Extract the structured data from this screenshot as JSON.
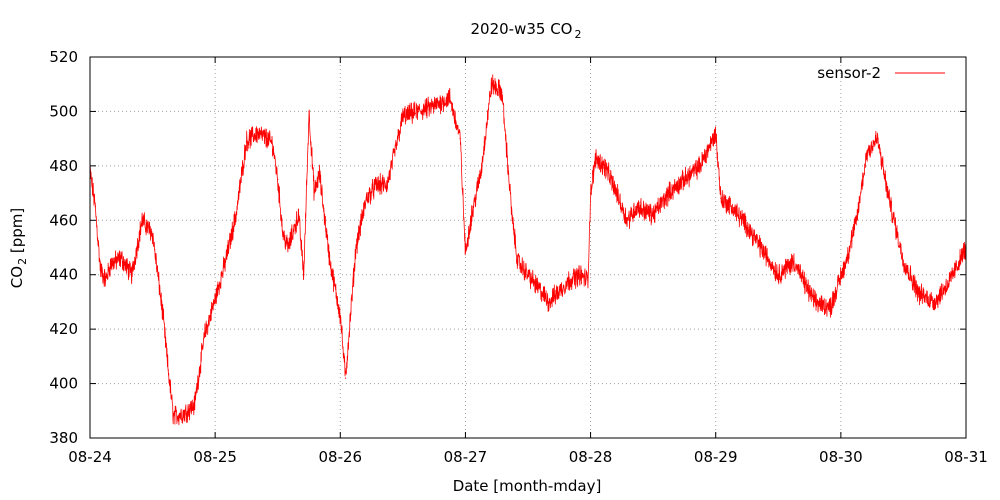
{
  "chart_data": {
    "type": "line",
    "title_main": "2020-w35 CO",
    "title_sub": "2",
    "xlabel": "Date [month-mday]",
    "ylabel_main": "CO",
    "ylabel_sub": "2",
    "ylabel_rest": " [ppm]",
    "x_ticks": [
      "08-24",
      "08-25",
      "08-26",
      "08-27",
      "08-28",
      "08-29",
      "08-30",
      "08-31"
    ],
    "xlim": [
      "2020-08-24",
      "2020-08-31"
    ],
    "y_ticks": [
      380,
      400,
      420,
      440,
      460,
      480,
      500,
      520
    ],
    "ylim": [
      380,
      520
    ],
    "grid": true,
    "legend_position": "top-right",
    "line_color": "#ff0000",
    "series": [
      {
        "name": "sensor-2",
        "x": [
          "2020-08-24 00:00",
          "2020-08-24 01:00",
          "2020-08-24 02:00",
          "2020-08-24 03:00",
          "2020-08-24 04:00",
          "2020-08-24 06:00",
          "2020-08-24 08:00",
          "2020-08-24 10:00",
          "2020-08-24 12:00",
          "2020-08-24 14:00",
          "2020-08-24 15:00",
          "2020-08-24 16:00",
          "2020-08-24 18:00",
          "2020-08-24 20:00",
          "2020-08-24 22:00",
          "2020-08-25 00:00",
          "2020-08-25 02:00",
          "2020-08-25 04:00",
          "2020-08-25 06:00",
          "2020-08-25 08:00",
          "2020-08-25 10:00",
          "2020-08-25 11:00",
          "2020-08-25 12:00",
          "2020-08-25 13:00",
          "2020-08-25 14:00",
          "2020-08-25 16:00",
          "2020-08-25 17:00",
          "2020-08-25 18:00",
          "2020-08-25 19:00",
          "2020-08-25 20:00",
          "2020-08-25 22:00",
          "2020-08-26 00:00",
          "2020-08-26 01:00",
          "2020-08-26 03:00",
          "2020-08-26 05:00",
          "2020-08-26 07:00",
          "2020-08-26 09:00",
          "2020-08-26 12:00",
          "2020-08-26 15:00",
          "2020-08-26 18:00",
          "2020-08-26 21:00",
          "2020-08-26 23:00",
          "2020-08-27 00:00",
          "2020-08-27 01:00",
          "2020-08-27 03:00",
          "2020-08-27 05:00",
          "2020-08-27 07:00",
          "2020-08-27 09:00",
          "2020-08-27 10:00",
          "2020-08-27 12:00",
          "2020-08-27 14:00",
          "2020-08-27 16:00",
          "2020-08-27 18:00",
          "2020-08-27 20:00",
          "2020-08-27 22:00",
          "2020-08-27 23:30",
          "2020-08-28 00:00",
          "2020-08-28 01:00",
          "2020-08-28 03:00",
          "2020-08-28 05:00",
          "2020-08-28 07:00",
          "2020-08-28 09:00",
          "2020-08-28 12:00",
          "2020-08-28 15:00",
          "2020-08-28 18:00",
          "2020-08-28 21:00",
          "2020-08-29 00:00",
          "2020-08-29 01:00",
          "2020-08-29 03:00",
          "2020-08-29 06:00",
          "2020-08-29 09:00",
          "2020-08-29 12:00",
          "2020-08-29 15:00",
          "2020-08-29 17:00",
          "2020-08-29 19:00",
          "2020-08-29 22:00",
          "2020-08-30 01:00",
          "2020-08-30 03:00",
          "2020-08-30 05:00",
          "2020-08-30 07:00",
          "2020-08-30 09:00",
          "2020-08-30 12:00",
          "2020-08-30 15:00",
          "2020-08-30 18:00",
          "2020-08-30 21:00",
          "2020-08-31 00:00"
        ],
        "values": [
          478,
          465,
          442,
          438,
          444,
          446,
          440,
          460,
          455,
          425,
          405,
          388,
          389,
          392,
          418,
          431,
          445,
          462,
          489,
          492,
          490,
          488,
          475,
          455,
          450,
          462,
          440,
          500,
          470,
          477,
          445,
          425,
          402,
          450,
          468,
          473,
          473,
          498,
          500,
          502,
          505,
          490,
          448,
          460,
          478,
          510,
          507,
          460,
          445,
          440,
          435,
          430,
          434,
          438,
          440,
          438,
          470,
          483,
          479,
          470,
          460,
          465,
          462,
          470,
          475,
          480,
          492,
          468,
          465,
          458,
          449,
          440,
          445,
          437,
          430,
          428,
          445,
          460,
          485,
          490,
          470,
          445,
          433,
          430,
          438,
          450
        ]
      }
    ]
  }
}
